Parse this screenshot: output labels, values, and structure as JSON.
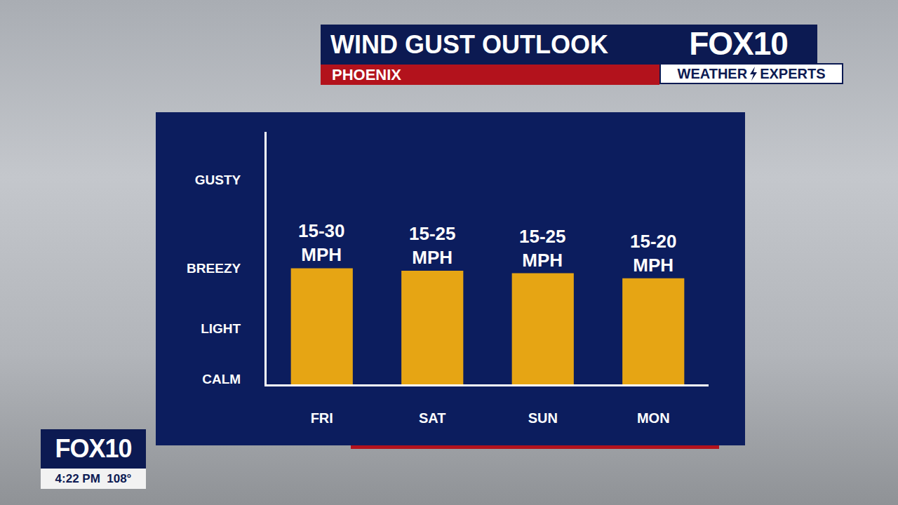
{
  "chart_data": {
    "type": "bar",
    "title": "WIND GUST OUTLOOK",
    "subtitle": "PHOENIX",
    "categories": [
      "FRI",
      "SAT",
      "SUN",
      "MON"
    ],
    "values": [
      46,
      45,
      44,
      42
    ],
    "color": "#e6a514",
    "ylim": [
      0,
      100
    ],
    "yticks": [
      {
        "value": 2,
        "label": "CALM"
      },
      {
        "value": 22,
        "label": "LIGHT"
      },
      {
        "value": 46,
        "label": "BREEZY"
      },
      {
        "value": 81,
        "label": "GUSTY"
      }
    ],
    "grid": false,
    "annotations": [
      {
        "category": "FRI",
        "text": "15-30 MPH"
      },
      {
        "category": "SAT",
        "text": "15-25 MPH"
      },
      {
        "category": "SUN",
        "text": "15-25 MPH"
      },
      {
        "category": "MON",
        "text": "15-20 MPH"
      }
    ]
  },
  "branding": {
    "station_logo": "FOX10",
    "segment": "WEATHER EXPERTS",
    "bug_logo": "FOX10",
    "time": "4:22 PM",
    "temperature": "108°"
  }
}
